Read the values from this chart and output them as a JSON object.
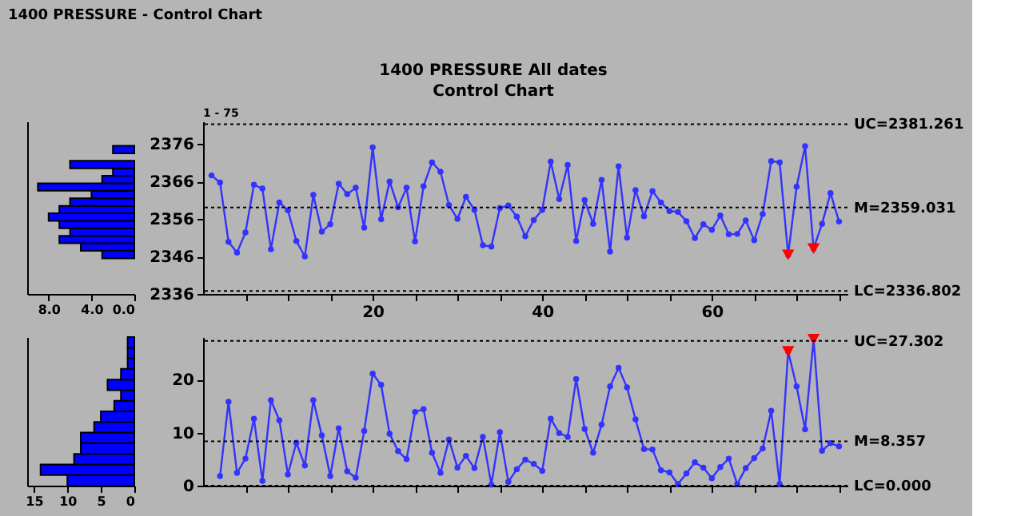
{
  "chart_data": [
    {
      "type": "histogram",
      "orientation": "horizontal",
      "annotations": [
        "1400 PRESSURE - Control Chart"
      ],
      "bins": [
        2345.5,
        2347.5,
        2349.5,
        2351.5,
        2353.5,
        2355.5,
        2357.5,
        2359.5,
        2361.5,
        2363.5,
        2365.5,
        2367.5,
        2369.5,
        2371.5,
        2373.5,
        2375.5
      ],
      "values": [
        3,
        5,
        7,
        6,
        7,
        8,
        7,
        6,
        4,
        9,
        3,
        2,
        6,
        0,
        2
      ],
      "color": "#0000ff",
      "xlim": [
        10,
        0
      ],
      "xticks": [
        {
          "value": 8,
          "label": "8.0"
        },
        {
          "value": 4,
          "label": "4.0"
        },
        {
          "value": 0,
          "label": "0.0"
        }
      ],
      "ylim": [
        2336,
        2382
      ],
      "tick_labels": "x",
      "grid": false
    },
    {
      "type": "line",
      "title": "1400 PRESSURE      All dates",
      "subtitle": "Control Chart",
      "annotations": [
        "1 - 75"
      ],
      "grid": false,
      "series": [
        {
          "type": "line",
          "color": "#3333ff",
          "marker": "circle",
          "line_style": "solid",
          "x": [
            1,
            2,
            3,
            4,
            5,
            6,
            7,
            8,
            9,
            10,
            11,
            12,
            13,
            14,
            15,
            16,
            17,
            18,
            19,
            20,
            21,
            22,
            23,
            24,
            25,
            26,
            27,
            28,
            29,
            30,
            31,
            32,
            33,
            34,
            35,
            36,
            37,
            38,
            39,
            40,
            41,
            42,
            43,
            44,
            45,
            46,
            47,
            48,
            49,
            50,
            51,
            52,
            53,
            54,
            55,
            56,
            57,
            58,
            59,
            60,
            61,
            62,
            63,
            64,
            65,
            66,
            67,
            68,
            69,
            70,
            71,
            72,
            73,
            74,
            75
          ],
          "values": [
            2367.6,
            2365.7,
            2349.9,
            2347.0,
            2352.4,
            2365.1,
            2364.1,
            2347.9,
            2360.4,
            2358.3,
            2350.1,
            2346.0,
            2362.4,
            2352.6,
            2354.6,
            2365.4,
            2362.6,
            2364.3,
            2353.7,
            2375.1,
            2355.9,
            2366.0,
            2359.1,
            2364.3,
            2350.0,
            2364.7,
            2371.1,
            2368.6,
            2359.7,
            2356.0,
            2361.9,
            2358.4,
            2349.0,
            2348.6,
            2358.9,
            2359.6,
            2356.6,
            2351.4,
            2355.7,
            2358.4,
            2371.3,
            2361.3,
            2370.4,
            2350.1,
            2361.0,
            2354.7,
            2366.4,
            2347.3,
            2370.0,
            2351.0,
            2363.7,
            2356.7,
            2363.4,
            2360.4,
            2358.1,
            2357.9,
            2355.4,
            2350.9,
            2354.6,
            2353.1,
            2356.9,
            2351.9,
            2352.0,
            2355.6,
            2350.3,
            2357.3,
            2371.4,
            2371.1,
            2346.4,
            2364.6,
            2375.4,
            2348.1,
            2354.7,
            2362.9,
            2355.3
          ]
        },
        {
          "type": "scatter",
          "color": "#ff0000",
          "marker": "triangle",
          "x": [
            69,
            72
          ],
          "values": [
            2346.4,
            2348.1
          ]
        }
      ],
      "xlim": [
        0,
        76
      ],
      "xticks": [
        {
          "value": 5,
          "label": null
        },
        {
          "value": 10,
          "label": null
        },
        {
          "value": 15,
          "label": null
        },
        20,
        {
          "value": 25,
          "label": null
        },
        {
          "value": 30,
          "label": null
        },
        {
          "value": 35,
          "label": null
        },
        40,
        {
          "value": 45,
          "label": null
        },
        {
          "value": 50,
          "label": null
        },
        {
          "value": 55,
          "label": null
        },
        60,
        {
          "value": 65,
          "label": null
        },
        {
          "value": 70,
          "label": null
        },
        {
          "value": 75,
          "label": null
        }
      ],
      "ylim": [
        2336,
        2382
      ],
      "yticks": [
        2336,
        2346,
        2356,
        2366,
        2376
      ],
      "ref_lines": [
        {
          "axis": "y",
          "value": 2381.261,
          "label": "UC=2381.261",
          "line_style": "dotted",
          "color": "#000000"
        },
        {
          "axis": "y",
          "value": 2359.031,
          "label": "M=2359.031",
          "line_style": "dotted",
          "color": "#000000"
        },
        {
          "axis": "y",
          "value": 2336.802,
          "label": "LC=2336.802",
          "line_style": "dotted",
          "color": "#000000"
        }
      ]
    },
    {
      "type": "histogram",
      "orientation": "horizontal",
      "bins": [
        0,
        2,
        4,
        6,
        8,
        10,
        12,
        14,
        16,
        18,
        20,
        22,
        24,
        26,
        28
      ],
      "values": [
        10,
        14,
        9,
        8,
        8,
        6,
        5,
        3,
        2,
        4,
        2,
        1,
        1,
        1
      ],
      "color": "#0000ff",
      "xlim": [
        16,
        0
      ],
      "xticks": [
        15,
        10,
        5,
        0
      ],
      "ylim": [
        0,
        28
      ],
      "tick_labels": "x",
      "grid": false
    },
    {
      "type": "line",
      "grid": false,
      "tick_labels": "y",
      "series": [
        {
          "type": "line",
          "color": "#3333ff",
          "marker": "circle",
          "line_style": "solid",
          "x": [
            2,
            3,
            4,
            5,
            6,
            7,
            8,
            9,
            10,
            11,
            12,
            13,
            14,
            15,
            16,
            17,
            18,
            19,
            20,
            21,
            22,
            23,
            24,
            25,
            26,
            27,
            28,
            29,
            30,
            31,
            32,
            33,
            34,
            35,
            36,
            37,
            38,
            39,
            40,
            41,
            42,
            43,
            44,
            45,
            46,
            47,
            48,
            49,
            50,
            51,
            52,
            53,
            54,
            55,
            56,
            57,
            58,
            59,
            60,
            61,
            62,
            63,
            64,
            65,
            66,
            67,
            68,
            69,
            70,
            71,
            72,
            73,
            74,
            75
          ],
          "values": [
            1.8,
            15.8,
            2.4,
            5.1,
            12.6,
            0.9,
            16.1,
            12.3,
            2.1,
            8.1,
            3.8,
            16.1,
            9.5,
            1.8,
            10.8,
            2.7,
            1.5,
            10.3,
            21.1,
            19.0,
            9.8,
            6.5,
            5.0,
            13.9,
            14.4,
            6.2,
            2.4,
            8.7,
            3.4,
            5.6,
            3.3,
            9.2,
            0.2,
            10.1,
            0.7,
            3.1,
            4.9,
            4.1,
            2.8,
            12.6,
            9.9,
            9.2,
            20.1,
            10.7,
            6.2,
            11.5,
            18.7,
            22.2,
            18.5,
            12.5,
            6.9,
            6.8,
            2.9,
            2.5,
            0.3,
            2.3,
            4.4,
            3.4,
            1.4,
            3.5,
            5.1,
            0.3,
            3.3,
            5.2,
            7.0,
            14.1,
            0.3,
            25.3,
            18.7,
            10.6,
            27.6,
            6.6,
            8.0,
            7.4
          ]
        },
        {
          "type": "scatter",
          "color": "#ff0000",
          "marker": "triangle",
          "x": [
            69,
            72
          ],
          "values": [
            25.3,
            27.6
          ]
        }
      ],
      "xlim": [
        0,
        76
      ],
      "xticks": [
        {
          "value": 5,
          "label": null
        },
        {
          "value": 10,
          "label": null
        },
        {
          "value": 15,
          "label": null
        },
        {
          "value": 20,
          "label": null
        },
        {
          "value": 25,
          "label": null
        },
        {
          "value": 30,
          "label": null
        },
        {
          "value": 35,
          "label": null
        },
        {
          "value": 40,
          "label": null
        },
        {
          "value": 45,
          "label": null
        },
        {
          "value": 50,
          "label": null
        },
        {
          "value": 55,
          "label": null
        },
        {
          "value": 60,
          "label": null
        },
        {
          "value": 65,
          "label": null
        },
        {
          "value": 70,
          "label": null
        },
        {
          "value": 75,
          "label": null
        }
      ],
      "ylim": [
        0,
        28
      ],
      "yticks": [
        0,
        10,
        20
      ],
      "ref_lines": [
        {
          "axis": "y",
          "value": 27.302,
          "label": "UC=27.302",
          "line_style": "dotted",
          "color": "#000000"
        },
        {
          "axis": "y",
          "value": 8.357,
          "label": "M=8.357",
          "line_style": "dotted",
          "color": "#000000"
        },
        {
          "axis": "y",
          "value": 0.0,
          "label": "LC=0.000",
          "line_style": "dotted",
          "color": "#000000"
        }
      ]
    }
  ]
}
